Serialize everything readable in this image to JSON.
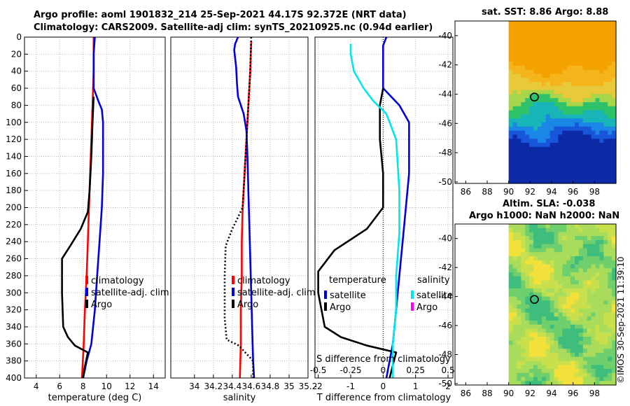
{
  "header": {
    "title_line1": "Argo profile: aoml 1901832_214 25-Sep-2021 44.17S 92.372E (NRT data)",
    "title_line2": "Climatology: CARS2009. Satellite-adj clim: synTS_20210925.nc (0.94d earlier)"
  },
  "map_titles": {
    "sst": "sat. SST: 8.86 Argo: 8.88",
    "sla_line1": "Altim. SLA: -0.038",
    "sla_line2": "Argo h1000: NaN h2000: NaN"
  },
  "stamp": "©IMOS 30-Sep-2021 11:39:10",
  "colors": {
    "climatology": "#ff0000",
    "satellite": "#0000dd",
    "argo": "#000000",
    "sat_salinity": "#00e5ee",
    "argo_salinity": "#ff00ff"
  },
  "chart_data": [
    {
      "type": "line",
      "panel": "temperature",
      "xlabel": "temperature (deg C)",
      "ylabel": "",
      "xlim": [
        3,
        15
      ],
      "ylim": [
        400,
        0
      ],
      "xticks": [
        "4",
        "6",
        "8",
        "10",
        "12",
        "14"
      ],
      "yticks": [
        "0",
        "20",
        "40",
        "60",
        "80",
        "100",
        "120",
        "140",
        "160",
        "180",
        "200",
        "220",
        "240",
        "260",
        "280",
        "300",
        "320",
        "340",
        "360",
        "380",
        "400"
      ],
      "legend": [
        "climatology",
        "satellite-adj. clim",
        "Argo"
      ],
      "series": [
        {
          "name": "climatology",
          "color": "#ff0000",
          "dashed": false,
          "points": [
            [
              8.9,
              0
            ],
            [
              8.9,
              40
            ],
            [
              8.8,
              80
            ],
            [
              8.7,
              120
            ],
            [
              8.6,
              160
            ],
            [
              8.5,
              200
            ],
            [
              8.4,
              240
            ],
            [
              8.3,
              280
            ],
            [
              8.15,
              320
            ],
            [
              8.05,
              360
            ],
            [
              7.9,
              400
            ]
          ]
        },
        {
          "name": "satellite-adj. clim",
          "color": "#0000dd",
          "dashed": false,
          "points": [
            [
              9.0,
              0
            ],
            [
              8.9,
              20
            ],
            [
              8.9,
              60
            ],
            [
              9.3,
              75
            ],
            [
              9.6,
              85
            ],
            [
              9.7,
              100
            ],
            [
              9.7,
              160
            ],
            [
              9.6,
              200
            ],
            [
              9.4,
              240
            ],
            [
              9.2,
              280
            ],
            [
              9.0,
              320
            ],
            [
              8.7,
              360
            ],
            [
              8.3,
              380
            ],
            [
              8.0,
              400
            ]
          ]
        },
        {
          "name": "Argo",
          "color": "#000000",
          "dashed": false,
          "points": [
            [
              8.9,
              70
            ],
            [
              8.8,
              100
            ],
            [
              8.7,
              140
            ],
            [
              8.55,
              180
            ],
            [
              8.4,
              205
            ],
            [
              7.8,
              225
            ],
            [
              6.9,
              245
            ],
            [
              6.2,
              260
            ],
            [
              6.2,
              300
            ],
            [
              6.3,
              340
            ],
            [
              6.7,
              352
            ],
            [
              7.3,
              362
            ],
            [
              8.4,
              370
            ],
            [
              8.1,
              390
            ],
            [
              8.0,
              400
            ]
          ]
        }
      ]
    },
    {
      "type": "line",
      "panel": "salinity",
      "xlabel": "salinity",
      "ylabel": "",
      "xlim": [
        33.75,
        35.2
      ],
      "ylim": [
        400,
        0
      ],
      "xticks": [
        "34",
        "34.2",
        "34.4",
        "34.6",
        "34.8",
        "35",
        "35.2"
      ],
      "yticks": [],
      "legend": [
        "climatology",
        "satellite-adj. clim",
        "Argo"
      ],
      "series": [
        {
          "name": "climatology",
          "color": "#ff0000",
          "dashed": false,
          "points": [
            [
              34.6,
              5
            ],
            [
              34.59,
              40
            ],
            [
              34.57,
              80
            ],
            [
              34.55,
              120
            ],
            [
              34.53,
              160
            ],
            [
              34.51,
              200
            ],
            [
              34.5,
              240
            ],
            [
              34.5,
              280
            ],
            [
              34.49,
              320
            ],
            [
              34.49,
              360
            ],
            [
              34.48,
              400
            ]
          ]
        },
        {
          "name": "satellite-adj. clim",
          "color": "#0000dd",
          "dashed": false,
          "points": [
            [
              34.46,
              0
            ],
            [
              34.43,
              8
            ],
            [
              34.42,
              15
            ],
            [
              34.44,
              35
            ],
            [
              34.45,
              55
            ],
            [
              34.46,
              70
            ],
            [
              34.52,
              90
            ],
            [
              34.55,
              110
            ],
            [
              34.56,
              140
            ],
            [
              34.57,
              180
            ],
            [
              34.58,
              220
            ],
            [
              34.59,
              260
            ],
            [
              34.6,
              300
            ],
            [
              34.61,
              340
            ],
            [
              34.62,
              380
            ],
            [
              34.63,
              400
            ]
          ]
        },
        {
          "name": "Argo",
          "color": "#000000",
          "dashed": true,
          "points": [
            [
              34.6,
              0
            ],
            [
              34.59,
              40
            ],
            [
              34.57,
              80
            ],
            [
              34.55,
              120
            ],
            [
              34.53,
              160
            ],
            [
              34.51,
              200
            ],
            [
              34.4,
              225
            ],
            [
              34.33,
              245
            ],
            [
              34.32,
              280
            ],
            [
              34.32,
              330
            ],
            [
              34.34,
              355
            ],
            [
              34.47,
              362
            ],
            [
              34.62,
              380
            ],
            [
              34.62,
              400
            ]
          ]
        }
      ]
    },
    {
      "type": "line",
      "panel": "difference",
      "xlabel": "T difference from climatology",
      "ylabel": "",
      "secondary_xlabel": "S difference from climatology",
      "xlim": [
        -2.1,
        2.15
      ],
      "ylim": [
        400,
        0
      ],
      "xticks": [
        "-2",
        "-1",
        "0",
        "1",
        "2"
      ],
      "secondary_xticks": [
        "-0.5",
        "-0.25",
        "0",
        "0.25",
        "0.5"
      ],
      "yticks": [],
      "legend_titles": [
        "temperature",
        "salinity"
      ],
      "legend": [
        "satellite",
        "Argo",
        "satellite",
        "Argo"
      ],
      "series": [
        {
          "name": "temperature satellite",
          "color": "#0000dd",
          "dashed": false,
          "points": [
            [
              0.1,
              0
            ],
            [
              0.0,
              10
            ],
            [
              0.0,
              60
            ],
            [
              0.5,
              80
            ],
            [
              0.8,
              100
            ],
            [
              0.8,
              160
            ],
            [
              0.7,
              200
            ],
            [
              0.6,
              240
            ],
            [
              0.5,
              280
            ],
            [
              0.4,
              320
            ],
            [
              0.3,
              360
            ],
            [
              0.1,
              400
            ]
          ]
        },
        {
          "name": "temperature Argo",
          "color": "#000000",
          "dashed": false,
          "points": [
            [
              0.0,
              60
            ],
            [
              -0.1,
              80
            ],
            [
              -0.1,
              120
            ],
            [
              0.0,
              160
            ],
            [
              0.0,
              200
            ],
            [
              -0.5,
              225
            ],
            [
              -1.5,
              250
            ],
            [
              -2.0,
              275
            ],
            [
              -2.0,
              300
            ],
            [
              -1.8,
              340
            ],
            [
              -1.3,
              352
            ],
            [
              -0.5,
              362
            ],
            [
              0.4,
              370
            ],
            [
              0.3,
              385
            ],
            [
              0.2,
              400
            ]
          ]
        },
        {
          "name": "salinity satellite",
          "color": "#00e5ee",
          "dashed": false,
          "points": [
            [
              -1.0,
              8
            ],
            [
              -1.0,
              20
            ],
            [
              -0.9,
              40
            ],
            [
              -0.6,
              60
            ],
            [
              -0.3,
              75
            ],
            [
              0.1,
              90
            ],
            [
              0.4,
              120
            ],
            [
              0.5,
              180
            ],
            [
              0.5,
              230
            ],
            [
              0.4,
              280
            ],
            [
              0.4,
              320
            ],
            [
              0.3,
              360
            ],
            [
              0.3,
              400
            ]
          ]
        }
      ]
    }
  ],
  "maps": [
    {
      "type": "heatmap",
      "name": "sat-sst-map",
      "xticks": [
        "86",
        "88",
        "90",
        "92",
        "94",
        "96",
        "98"
      ],
      "yticks": [
        "-40",
        "-42",
        "-44",
        "-46",
        "-48",
        "-50"
      ],
      "marker": [
        92.4,
        -44.2
      ]
    },
    {
      "type": "heatmap",
      "name": "sla-map",
      "xticks": [
        "86",
        "88",
        "90",
        "92",
        "94",
        "96",
        "98"
      ],
      "yticks": [
        "-40",
        "-42",
        "-44",
        "-46",
        "-48",
        "-50"
      ],
      "marker": [
        92.4,
        -44.2
      ]
    }
  ]
}
